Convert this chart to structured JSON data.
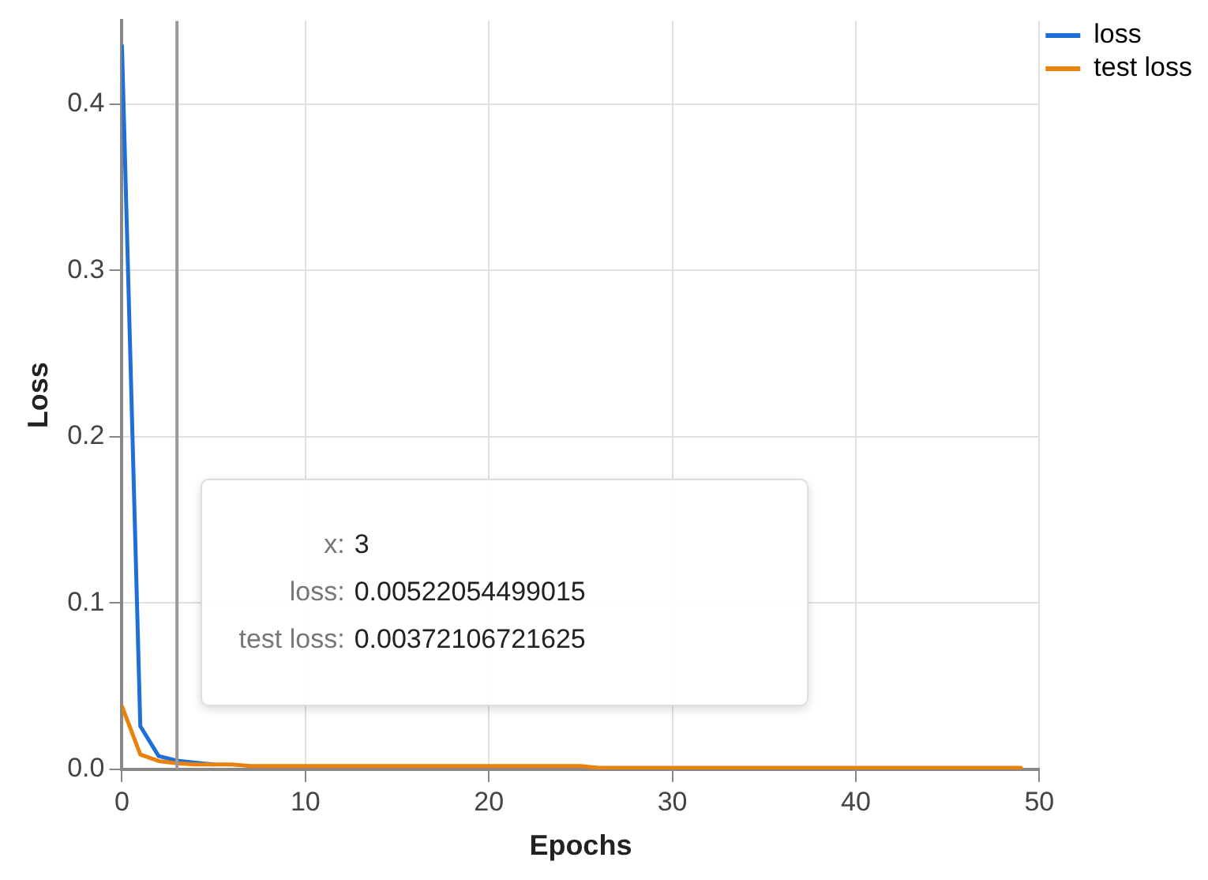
{
  "chart_data": {
    "type": "line",
    "xlabel": "Epochs",
    "ylabel": "Loss",
    "x": [
      0,
      1,
      2,
      3,
      4,
      5,
      6,
      7,
      8,
      9,
      10,
      11,
      12,
      13,
      14,
      15,
      16,
      17,
      18,
      19,
      20,
      21,
      22,
      23,
      24,
      25,
      26,
      27,
      28,
      29,
      30,
      31,
      32,
      33,
      34,
      35,
      36,
      37,
      38,
      39,
      40,
      41,
      42,
      43,
      44,
      45,
      46,
      47,
      48,
      49
    ],
    "series": [
      {
        "name": "loss",
        "color": "#1f6fd8",
        "values": [
          0.435,
          0.026,
          0.008,
          0.00522054499015,
          0.004,
          0.003,
          null,
          null,
          null,
          null,
          null,
          null,
          null,
          null,
          null,
          null,
          null,
          null,
          null,
          null,
          null,
          null,
          null,
          null,
          null,
          null,
          null,
          null,
          null,
          null,
          null,
          null,
          null,
          null,
          null,
          null,
          null,
          null,
          null,
          null,
          null,
          null,
          null,
          null,
          null,
          null,
          null,
          null,
          null,
          null
        ]
      },
      {
        "name": "test loss",
        "color": "#e8820c",
        "values": [
          0.038,
          0.009,
          0.005,
          0.00372106721625,
          0.003,
          0.003,
          0.003,
          0.002,
          0.002,
          0.002,
          0.002,
          0.002,
          0.002,
          0.002,
          0.002,
          0.002,
          0.002,
          0.002,
          0.002,
          0.002,
          0.002,
          0.002,
          0.002,
          0.002,
          0.002,
          0.002,
          0.001,
          0.001,
          0.001,
          0.001,
          0.001,
          0.001,
          0.001,
          0.001,
          0.001,
          0.001,
          0.001,
          0.001,
          0.001,
          0.001,
          0.001,
          0.001,
          0.001,
          0.001,
          0.001,
          0.001,
          0.001,
          0.001,
          0.001,
          0.001
        ]
      }
    ],
    "xlim": [
      0,
      50
    ],
    "xticks": [
      0,
      10,
      20,
      30,
      40,
      50
    ],
    "ylim": [
      0,
      0.45
    ],
    "yticks": [
      {
        "value": 0,
        "label": "0.0"
      },
      {
        "value": 0.1,
        "label": "0.1"
      },
      {
        "value": 0.2,
        "label": "0.2"
      },
      {
        "value": 0.3,
        "label": "0.3"
      },
      {
        "value": 0.4,
        "label": "0.4"
      }
    ],
    "ref_lines": [
      {
        "axis": "x",
        "value": 3,
        "color": "#999999"
      }
    ],
    "annotations": [
      "x: 3",
      "loss: 0.00522054499015",
      "test loss: 0.00372106721625"
    ],
    "grid": true,
    "legend": "top right",
    "marker": "none",
    "line_style": "solid"
  }
}
